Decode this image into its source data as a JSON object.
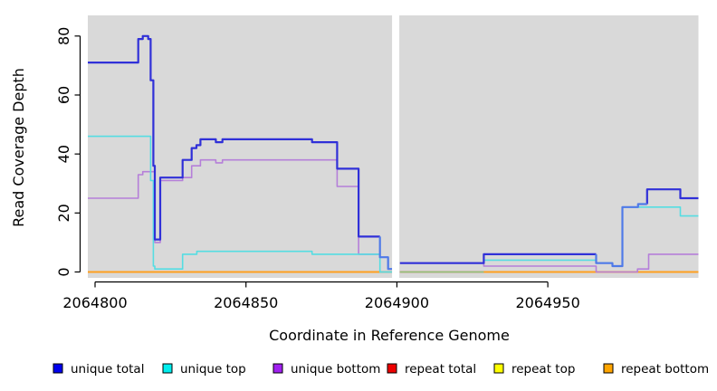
{
  "chart_data": {
    "type": "line",
    "subtype": "step-coverage",
    "title": "",
    "xlabel": "Coordinate in Reference Genome",
    "ylabel": "Read Coverage Depth",
    "xlim": [
      2064797.6,
      2064999.9
    ],
    "ylim": [
      -2,
      87
    ],
    "xticks": [
      2064800,
      2064850,
      2064900,
      2064950
    ],
    "yticks": [
      0,
      20,
      40,
      60,
      80
    ],
    "grid": false,
    "plot_bg_color": "#d9d9d9",
    "gap_band": {
      "x_start": 2064898.4,
      "x_end": 2064900.8,
      "color": "#ffffff"
    },
    "legend_position": "bottom",
    "series": [
      {
        "name": "repeat total",
        "legend_color": "#ee0000",
        "line_color": "#ee1111",
        "width": 1.5,
        "points": [
          [
            2064797.6,
            0
          ],
          [
            2064898.4,
            null
          ],
          [
            2064901,
            0
          ],
          [
            2064999.9,
            0
          ]
        ]
      },
      {
        "name": "repeat top",
        "legend_color": "#ffff00",
        "line_color": "#8cc87a",
        "width": 1.6,
        "points": [
          [
            2064797.6,
            0
          ],
          [
            2064898.4,
            null
          ],
          [
            2064901,
            0
          ],
          [
            2064999.9,
            0
          ]
        ]
      },
      {
        "name": "repeat bottom",
        "legend_color": "#ffa500",
        "line_color": "#ff9f1f",
        "width": 2,
        "points": [
          [
            2064797.6,
            0
          ],
          [
            2064894.3,
            null
          ],
          [
            2064928.8,
            0
          ],
          [
            2064999.9,
            0
          ]
        ]
      },
      {
        "name": "unique bottom",
        "legend_color": "#a020f0",
        "line_color": "#b57fd9",
        "width": 1.6,
        "points": [
          [
            2064797.6,
            25
          ],
          [
            2064814.3,
            33
          ],
          [
            2064815.8,
            34
          ],
          [
            2064819.8,
            10
          ],
          [
            2064821.6,
            31
          ],
          [
            2064829,
            32
          ],
          [
            2064832,
            36
          ],
          [
            2064834.9,
            38
          ],
          [
            2064840,
            37
          ],
          [
            2064842.2,
            38
          ],
          [
            2064880.2,
            29
          ],
          [
            2064887.3,
            6
          ],
          [
            2064894.4,
            5
          ],
          [
            2064897.1,
            1
          ],
          [
            2064898.4,
            null
          ],
          [
            2064901,
            3
          ],
          [
            2064928.8,
            2
          ],
          [
            2064966,
            0
          ],
          [
            2064979.7,
            1
          ],
          [
            2064983.4,
            6
          ],
          [
            2064999.9,
            6
          ]
        ]
      },
      {
        "name": "unique top",
        "legend_color": "#00eeee",
        "line_color": "#55dde2",
        "width": 1.6,
        "points": [
          [
            2064797.6,
            46
          ],
          [
            2064818.4,
            31
          ],
          [
            2064819.3,
            2
          ],
          [
            2064819.8,
            1
          ],
          [
            2064829,
            6
          ],
          [
            2064833.7,
            7
          ],
          [
            2064871.9,
            6
          ],
          [
            2064894.4,
            0
          ],
          [
            2064898.4,
            null
          ],
          [
            2064928.8,
            4
          ],
          [
            2064966,
            3
          ],
          [
            2064971.4,
            2
          ],
          [
            2064974.7,
            22
          ],
          [
            2064993.9,
            19
          ],
          [
            2064999.9,
            19
          ]
        ]
      },
      {
        "name": "unique total",
        "legend_color": "#0000ee",
        "line_color": "#3030d8",
        "bright_color": "#4f7ae8",
        "bright_ranges": [
          [
            2064894.4,
            2064898.4
          ],
          [
            2064966,
            2064982.9
          ]
        ],
        "width": 2.2,
        "points": [
          [
            2064797.6,
            71
          ],
          [
            2064814.3,
            79
          ],
          [
            2064815.8,
            80
          ],
          [
            2064817.6,
            79
          ],
          [
            2064818.4,
            65
          ],
          [
            2064819.3,
            36
          ],
          [
            2064819.8,
            11
          ],
          [
            2064821.6,
            32
          ],
          [
            2064829,
            38
          ],
          [
            2064832,
            42
          ],
          [
            2064833.6,
            43
          ],
          [
            2064834.9,
            45
          ],
          [
            2064840,
            44
          ],
          [
            2064842.2,
            45
          ],
          [
            2064871.9,
            44
          ],
          [
            2064880.2,
            35
          ],
          [
            2064887.3,
            12
          ],
          [
            2064894.4,
            5
          ],
          [
            2064897.1,
            1
          ],
          [
            2064898.4,
            null
          ],
          [
            2064901,
            3
          ],
          [
            2064928.8,
            6
          ],
          [
            2064966,
            3
          ],
          [
            2064971.4,
            2
          ],
          [
            2064974.7,
            22
          ],
          [
            2064979.9,
            23
          ],
          [
            2064982.9,
            28
          ],
          [
            2064993.9,
            25
          ],
          [
            2064999.9,
            25
          ]
        ]
      }
    ],
    "legend_order": [
      "unique total",
      "unique top",
      "unique bottom",
      "repeat total",
      "repeat top",
      "repeat bottom"
    ]
  }
}
